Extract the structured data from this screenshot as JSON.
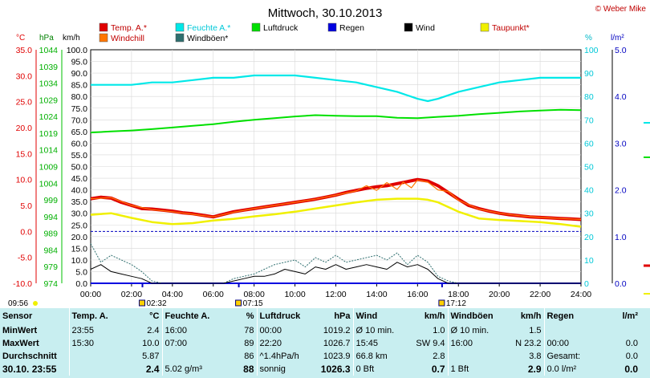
{
  "header": {
    "title": "Mittwoch, 30.10.2013",
    "credit": "© Weber Mike"
  },
  "units": {
    "temp": "°C",
    "pressure": "hPa",
    "wind": "km/h",
    "humidity": "%",
    "rain": "l/m²"
  },
  "legend": [
    {
      "label": "Temp. A.*",
      "color": "#e00000"
    },
    {
      "label": "Feuchte A.*",
      "color": "#00e8e8"
    },
    {
      "label": "Luftdruck",
      "color": "#00e000"
    },
    {
      "label": "Regen",
      "color": "#0000e0"
    },
    {
      "label": "Wind",
      "color": "#000000"
    },
    {
      "label": "Taupunkt*",
      "color": "#f0f000"
    },
    {
      "label": "Windchill",
      "color": "#ff7700"
    },
    {
      "label": "Windböen*",
      "color": "#2f6f6f"
    }
  ],
  "chart_data": {
    "type": "line",
    "x_range": [
      "00:00",
      "24:00"
    ],
    "x_ticks": [
      "00:00",
      "02:00",
      "04:00",
      "06:00",
      "08:00",
      "10:00",
      "12:00",
      "14:00",
      "16:00",
      "18:00",
      "20:00",
      "22:00",
      "24:00"
    ],
    "axes": {
      "temp_ticks": [
        "35.0",
        "30.0",
        "25.0",
        "20.0",
        "15.0",
        "10.0",
        "5.0",
        "0.0",
        "-5.0",
        "-10.0"
      ],
      "temp_range": [
        -10,
        35
      ],
      "pressure_ticks": [
        "1044",
        "1039",
        "1034",
        "1029",
        "1024",
        "1019",
        "1014",
        "1009",
        "1004",
        "999",
        "994",
        "989",
        "984",
        "979",
        "974"
      ],
      "wind_ticks": [
        "100.0",
        "95.0",
        "90.0",
        "85.0",
        "80.0",
        "75.0",
        "70.0",
        "65.0",
        "60.0",
        "55.0",
        "50.0",
        "45.0",
        "40.0",
        "35.0",
        "30.0",
        "25.0",
        "20.0",
        "15.0",
        "10.0",
        "5.0",
        "0.0"
      ],
      "wind_range": [
        0,
        100
      ],
      "humidity_ticks": [
        "100",
        "90",
        "80",
        "70",
        "60",
        "50",
        "40",
        "30",
        "20",
        "10",
        "0"
      ],
      "humidity_range": [
        0,
        100
      ],
      "rain_ticks": [
        "5.0",
        "4.0",
        "3.0",
        "2.0",
        "1.0",
        "0.0"
      ],
      "rain_range": [
        0,
        5
      ]
    },
    "series": [
      {
        "name": "Temp. A.*",
        "axis": "temp",
        "color": "#e00000",
        "x": [
          0,
          0.5,
          1,
          1.5,
          2,
          2.5,
          3,
          3.5,
          4,
          4.5,
          5,
          5.5,
          6,
          6.5,
          7,
          7.5,
          8,
          8.5,
          9,
          9.5,
          10,
          10.5,
          11,
          11.5,
          12,
          12.5,
          13,
          13.5,
          14,
          14.5,
          15,
          15.5,
          16,
          16.5,
          17,
          17.5,
          18,
          18.5,
          19,
          19.5,
          20,
          20.5,
          21,
          21.5,
          22,
          22.5,
          23,
          23.5,
          24
        ],
        "y": [
          6.3,
          6.6,
          6.4,
          5.6,
          5.0,
          4.4,
          4.3,
          4.1,
          3.9,
          3.6,
          3.4,
          3.1,
          2.8,
          3.3,
          3.8,
          4.1,
          4.4,
          4.7,
          5.0,
          5.3,
          5.6,
          5.9,
          6.2,
          6.6,
          7.0,
          7.5,
          7.9,
          8.3,
          8.6,
          8.8,
          9.2,
          9.6,
          10.0,
          9.7,
          8.8,
          7.5,
          6.2,
          5.0,
          4.4,
          3.9,
          3.5,
          3.2,
          3.0,
          2.8,
          2.7,
          2.6,
          2.5,
          2.4,
          2.3
        ]
      },
      {
        "name": "Windchill",
        "axis": "temp",
        "color": "#ff7700",
        "x": [
          0,
          1,
          2,
          3,
          4,
          5,
          6,
          7,
          8,
          9,
          10,
          11,
          12,
          13,
          13.5,
          14,
          14.5,
          15,
          15.3,
          15.7,
          16,
          16.5,
          17,
          17.5,
          18,
          19,
          20,
          21,
          22,
          23,
          24
        ],
        "y": [
          6.3,
          6.5,
          5.0,
          4.2,
          3.8,
          3.3,
          2.8,
          3.7,
          4.4,
          5.0,
          5.6,
          6.2,
          7.0,
          7.8,
          8.8,
          7.9,
          9.4,
          8.1,
          9.5,
          8.4,
          9.9,
          9.5,
          8.0,
          7.7,
          6.0,
          4.3,
          3.5,
          3.0,
          2.7,
          2.5,
          2.3
        ]
      },
      {
        "name": "Taupunkt*",
        "axis": "temp",
        "color": "#f0f000",
        "x": [
          0,
          1,
          2,
          3,
          4,
          5,
          6,
          7,
          8,
          9,
          10,
          11,
          12,
          13,
          14,
          15,
          16,
          16.5,
          17,
          18,
          19,
          20,
          21,
          22,
          23,
          24
        ],
        "y": [
          3.2,
          3.5,
          2.6,
          1.8,
          1.4,
          1.6,
          2.1,
          2.4,
          2.9,
          3.3,
          3.8,
          4.4,
          5.0,
          5.6,
          6.1,
          6.3,
          6.3,
          6.1,
          5.6,
          3.8,
          2.5,
          2.2,
          2.0,
          1.8,
          1.4,
          0.9
        ]
      },
      {
        "name": "Feuchte A.*",
        "axis": "humidity",
        "color": "#00e8e8",
        "x": [
          0,
          1,
          2,
          3,
          4,
          5,
          6,
          7,
          8,
          9,
          10,
          11,
          12,
          13,
          14,
          15,
          16,
          16.5,
          17,
          18,
          19,
          20,
          21,
          22,
          23,
          24
        ],
        "y": [
          85,
          85,
          85,
          86,
          86,
          87,
          88,
          88,
          89,
          89,
          89,
          88,
          87,
          86,
          84,
          82,
          79,
          78,
          79,
          82,
          84,
          86,
          87,
          88,
          88,
          88
        ]
      },
      {
        "name": "Luftdruck",
        "axis": "pressure",
        "color": "#00e000",
        "x": [
          0,
          1,
          2,
          3,
          4,
          5,
          6,
          7,
          8,
          9,
          10,
          11,
          12,
          13,
          14,
          15,
          16,
          17,
          18,
          19,
          20,
          21,
          22,
          23,
          24
        ],
        "y": [
          1019.2,
          1019.5,
          1019.8,
          1020.2,
          1020.7,
          1021.2,
          1021.7,
          1022.4,
          1023.0,
          1023.5,
          1024.0,
          1024.4,
          1024.2,
          1024.1,
          1024.1,
          1023.6,
          1023.5,
          1023.9,
          1024.2,
          1024.7,
          1025.1,
          1025.5,
          1025.8,
          1026.0,
          1025.9
        ]
      },
      {
        "name": "Windböen*",
        "axis": "wind",
        "color": "#2f6f6f",
        "x": [
          0,
          0.5,
          1,
          1.5,
          2,
          2.5,
          3,
          3.5,
          4,
          4.5,
          5,
          5.5,
          6,
          6.5,
          7,
          7.5,
          8,
          8.5,
          9,
          9.5,
          10,
          10.5,
          11,
          11.5,
          12,
          12.5,
          13,
          13.5,
          14,
          14.5,
          15,
          15.5,
          16,
          16.5,
          17,
          17.5,
          18,
          19,
          20,
          21,
          22,
          23,
          24
        ],
        "y": [
          17,
          9,
          12,
          10,
          8,
          5,
          1,
          0,
          0,
          0,
          0,
          0,
          0,
          0,
          2,
          3,
          4,
          6,
          8,
          9,
          10,
          7,
          11,
          9,
          12,
          9,
          10,
          11,
          12,
          10,
          13,
          8,
          12,
          9,
          3,
          1,
          0,
          0,
          0,
          0,
          0,
          0,
          0
        ]
      },
      {
        "name": "Wind",
        "axis": "wind",
        "color": "#000000",
        "x": [
          0,
          0.5,
          1,
          1.5,
          2,
          2.5,
          3,
          3.5,
          4,
          4.5,
          5,
          5.5,
          6,
          6.5,
          7,
          7.5,
          8,
          8.5,
          9,
          9.5,
          10,
          10.5,
          11,
          11.5,
          12,
          12.5,
          13,
          13.5,
          14,
          14.5,
          15,
          15.5,
          16,
          16.5,
          17,
          17.5,
          18,
          19,
          20,
          21,
          22,
          23,
          24
        ],
        "y": [
          6,
          8,
          5,
          4,
          3,
          2,
          0,
          0,
          0,
          0,
          0,
          0,
          0,
          0,
          1,
          2,
          3,
          3,
          4,
          6,
          5,
          4,
          7,
          6,
          8,
          6,
          7,
          8,
          7,
          6,
          9,
          7,
          8,
          6,
          2,
          0,
          0,
          0,
          0,
          0,
          0,
          0,
          0
        ]
      },
      {
        "name": "Regen",
        "axis": "rain",
        "color": "#0000e0",
        "x": [
          0,
          24
        ],
        "y": [
          0.0,
          0.0
        ]
      }
    ],
    "reference_line": {
      "axis": "temp",
      "value": 0.0,
      "color": "#0000c0",
      "style": "dashed"
    },
    "markers": [
      {
        "time": "09:56",
        "kind": "sunrise-like",
        "label": "09:56"
      },
      {
        "time": "02:32",
        "kind": "moonrise",
        "label": "02:32"
      },
      {
        "time": "07:15",
        "kind": "sunrise",
        "label": "07:15"
      },
      {
        "time": "17:12",
        "kind": "sunset",
        "label": "17:12"
      }
    ]
  },
  "summary": {
    "headers": [
      "Sensor",
      "Temp. A.",
      "°C",
      "Feuchte A.",
      "%",
      "Luftdruck",
      "hPa",
      "Wind",
      "km/h",
      "Windböen",
      "km/h",
      "Regen",
      "l/m²"
    ],
    "rows": [
      [
        "MinWert",
        "23:55",
        "2.4",
        "16:00",
        "78",
        "00:00",
        "1019.2",
        "Ø 10 min.",
        "1.0",
        "Ø 10 min.",
        "1.5",
        "",
        ""
      ],
      [
        "MaxWert",
        "15:30",
        "10.0",
        "07:00",
        "89",
        "22:20",
        "1026.7",
        "15:45",
        "SW 9.4",
        "16:00",
        "N 23.2",
        "00:00",
        "0.0"
      ],
      [
        "Durchschnitt",
        "",
        "5.87",
        "",
        "86",
        "^1.4hPa/h",
        "1023.9",
        "66.8 km",
        "2.8",
        "",
        "3.8",
        "Gesamt:",
        "0.0"
      ],
      [
        "30.10. 23:55",
        "",
        "2.4",
        "5.02 g/m³",
        "88",
        "sonnig",
        "1026.3",
        "0 Bft",
        "0.7",
        "1 Bft",
        "2.9",
        "0.0 l/m²",
        "0.0"
      ]
    ]
  }
}
